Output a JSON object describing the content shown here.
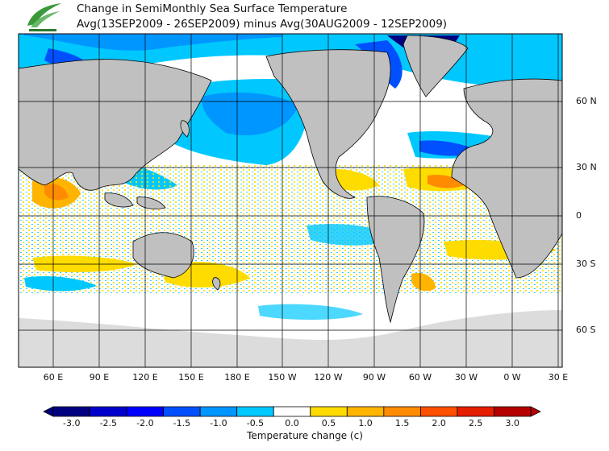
{
  "title": {
    "line1": "Change in SemiMonthly Sea Surface Temperature",
    "line2": "Avg(13SEP2009 - 26SEP2009) minus Avg(30AUG2009 - 12SEP2009)"
  },
  "map": {
    "lat_labels": [
      "60 N",
      "30 N",
      "0",
      "30 S",
      "60 S"
    ],
    "lat_values": [
      60,
      30,
      0,
      -30,
      -60
    ],
    "lon_labels": [
      "60 E",
      "90 E",
      "120 E",
      "150 E",
      "180 E",
      "150 W",
      "120 W",
      "90 W",
      "60 W",
      "30 W",
      "0 W",
      "30 E"
    ],
    "land_color": "#c0c0c0",
    "ice_color": "#dcdcdc",
    "ocean_color": "#ffffff"
  },
  "colorbar": {
    "label": "Temperature change  (c)",
    "ticks": [
      "-3.0",
      "-2.5",
      "-2.0",
      "-1.5",
      "-1.0",
      "-0.5",
      "0.0",
      "0.5",
      "1.0",
      "1.5",
      "2.0",
      "2.5",
      "3.0"
    ],
    "colors": [
      "#000080",
      "#0000cd",
      "#0000ff",
      "#0050ff",
      "#0096ff",
      "#00c8ff",
      "#ffffff",
      "#ffdc00",
      "#ffb400",
      "#ff8c00",
      "#ff5000",
      "#e61e00",
      "#b40000"
    ]
  }
}
